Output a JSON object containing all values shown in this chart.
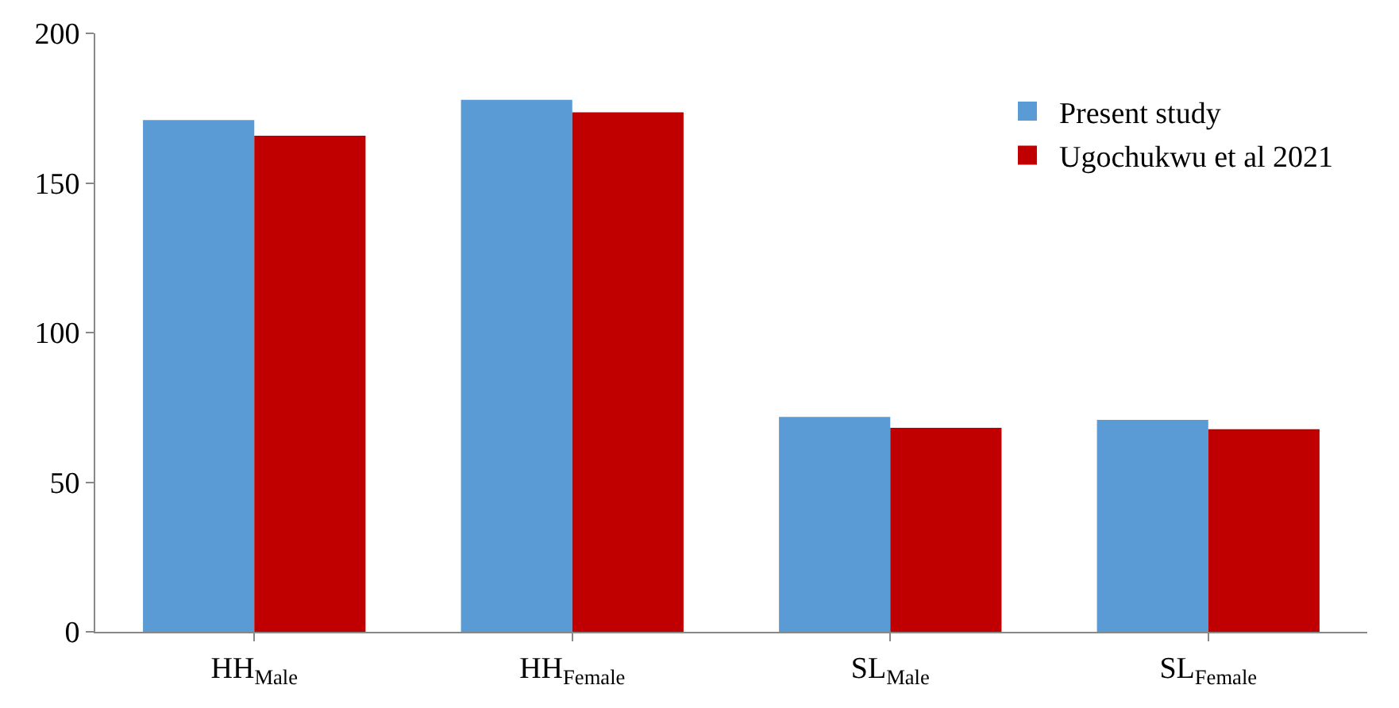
{
  "chart_data": {
    "type": "bar",
    "categories": [
      "HH$_{Male}$",
      "HH$_{Female}$",
      "SL$_{Male}$",
      "SL$_{Female}$"
    ],
    "series": [
      {
        "name": "Present study",
        "color": "#5b9bd5",
        "values": [
          171,
          177.8,
          71.8,
          70.8
        ]
      },
      {
        "name": "Ugochukwu et al 2021",
        "color": "#c00000",
        "values": [
          165.8,
          173.6,
          68.2,
          67.7
        ]
      }
    ],
    "ylim": [
      0,
      200
    ],
    "yticks": [
      0,
      50,
      100,
      150,
      200
    ],
    "legend": "top right"
  }
}
